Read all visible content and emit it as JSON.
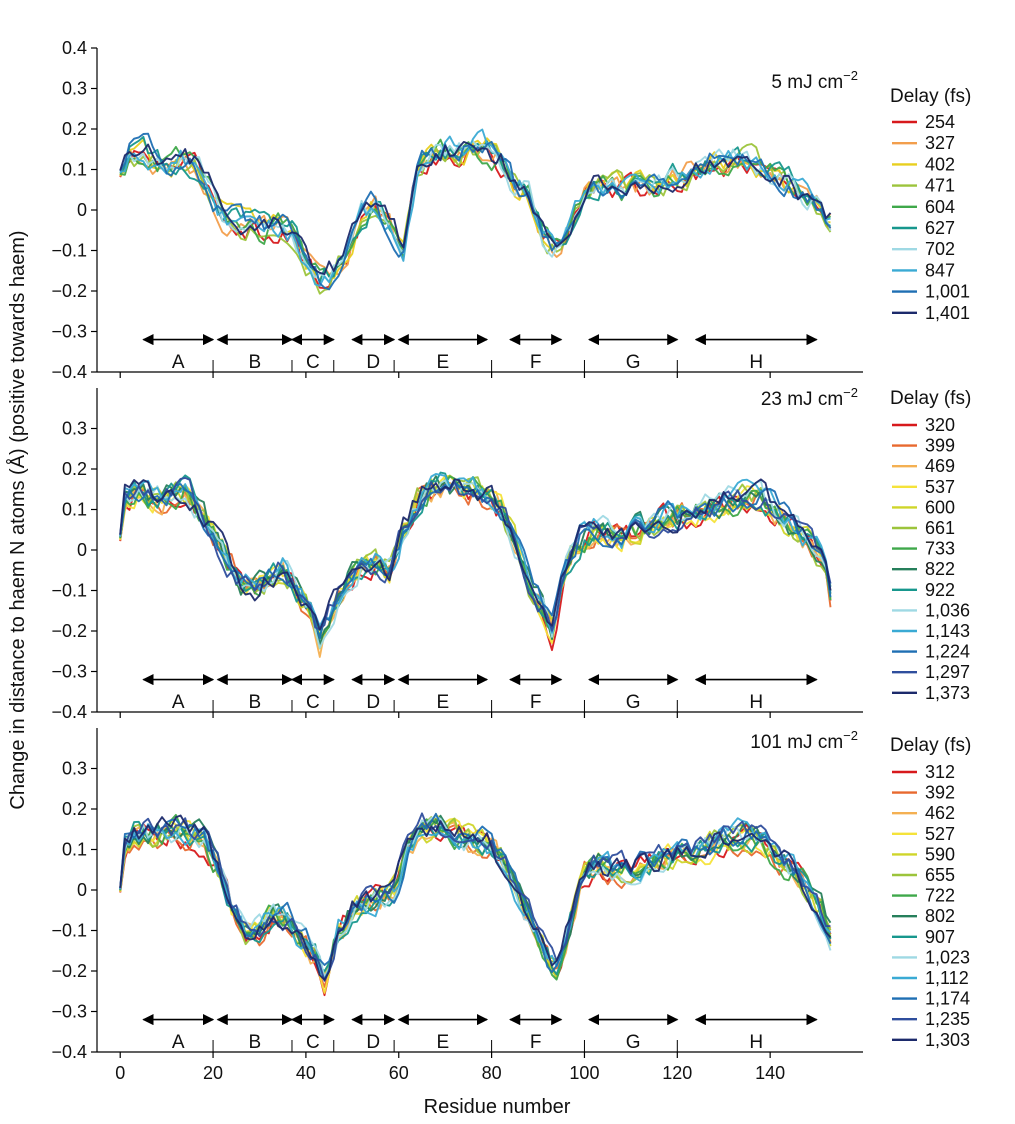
{
  "figure": {
    "ylabel": "Change in distance to haem N atoms (Å) (positive towards haem)",
    "xlabel": "Residue number",
    "legend_title": "Delay (fs)"
  },
  "chart_data": [
    {
      "type": "line",
      "condition": "5 mJ cm",
      "condition_sup": "−2",
      "xlim": [
        -5,
        160
      ],
      "ylim": [
        -0.4,
        0.4
      ],
      "xticks": [
        "0",
        "20",
        "40",
        "60",
        "80",
        "100",
        "120",
        "140"
      ],
      "yticks": [
        "−0.4",
        "−0.3",
        "−0.2",
        "−0.1",
        "0",
        "0.1",
        "0.2",
        "0.3",
        "0.4"
      ],
      "grid": false,
      "legend_placement": "right",
      "series": [
        {
          "name": "254",
          "color": "#d7191c"
        },
        {
          "name": "327",
          "color": "#f29e4c"
        },
        {
          "name": "402",
          "color": "#e8cf1f"
        },
        {
          "name": "471",
          "color": "#9cc43b"
        },
        {
          "name": "604",
          "color": "#3fa84a"
        },
        {
          "name": "627",
          "color": "#17978d"
        },
        {
          "name": "702",
          "color": "#9fd9e4"
        },
        {
          "name": "847",
          "color": "#3aaad4"
        },
        {
          "name": "1,001",
          "color": "#1f6fb3"
        },
        {
          "name": "1,401",
          "color": "#1c2a6b"
        }
      ],
      "profile_residues": [
        0,
        2,
        5,
        8,
        10,
        13,
        16,
        19,
        22,
        25,
        28,
        31,
        34,
        37,
        40,
        43,
        46,
        49,
        52,
        55,
        58,
        61,
        64,
        67,
        70,
        73,
        76,
        79,
        82,
        85,
        88,
        91,
        94,
        97,
        100,
        103,
        106,
        109,
        112,
        115,
        118,
        121,
        124,
        127,
        130,
        133,
        136,
        139,
        142,
        145,
        148,
        151,
        153
      ],
      "profile_mean": [
        0.08,
        0.13,
        0.14,
        0.12,
        0.11,
        0.13,
        0.11,
        0.06,
        -0.01,
        -0.03,
        -0.04,
        -0.05,
        -0.04,
        -0.06,
        -0.13,
        -0.17,
        -0.15,
        -0.1,
        -0.01,
        0.01,
        -0.04,
        -0.1,
        0.1,
        0.14,
        0.15,
        0.14,
        0.15,
        0.15,
        0.12,
        0.06,
        0.04,
        -0.06,
        -0.1,
        -0.04,
        0.05,
        0.06,
        0.06,
        0.05,
        0.06,
        0.06,
        0.07,
        0.09,
        0.1,
        0.12,
        0.12,
        0.13,
        0.12,
        0.1,
        0.08,
        0.06,
        0.03,
        0.0,
        -0.02
      ],
      "segments": [
        {
          "label": "A",
          "start": 5,
          "end": 20
        },
        {
          "label": "B",
          "start": 21,
          "end": 37
        },
        {
          "label": "C",
          "start": 37,
          "end": 46
        },
        {
          "label": "D",
          "start": 50,
          "end": 59
        },
        {
          "label": "E",
          "start": 60,
          "end": 79
        },
        {
          "label": "F",
          "start": 84,
          "end": 95
        },
        {
          "label": "G",
          "start": 101,
          "end": 120
        },
        {
          "label": "H",
          "start": 124,
          "end": 150
        }
      ]
    },
    {
      "type": "line",
      "condition": "23 mJ cm",
      "condition_sup": "−2",
      "xlim": [
        -5,
        160
      ],
      "ylim": [
        -0.4,
        0.4
      ],
      "xticks": [
        "0",
        "20",
        "40",
        "60",
        "80",
        "100",
        "120",
        "140"
      ],
      "yticks": [
        "−0.4",
        "−0.3",
        "−0.2",
        "−0.1",
        "0",
        "0.1",
        "0.2",
        "0.3"
      ],
      "grid": false,
      "legend_placement": "right",
      "series": [
        {
          "name": "320",
          "color": "#d7191c"
        },
        {
          "name": "399",
          "color": "#e8692f"
        },
        {
          "name": "469",
          "color": "#f4b052"
        },
        {
          "name": "537",
          "color": "#f5e33a"
        },
        {
          "name": "600",
          "color": "#cfd52a"
        },
        {
          "name": "661",
          "color": "#9cc43b"
        },
        {
          "name": "733",
          "color": "#3fa84a"
        },
        {
          "name": "822",
          "color": "#267f5b"
        },
        {
          "name": "922",
          "color": "#17978d"
        },
        {
          "name": "1,036",
          "color": "#9fd9e4"
        },
        {
          "name": "1,143",
          "color": "#3aaad4"
        },
        {
          "name": "1,224",
          "color": "#1f6fb3"
        },
        {
          "name": "1,297",
          "color": "#2f4e9d"
        },
        {
          "name": "1,373",
          "color": "#1c2a6b"
        }
      ],
      "profile_residues": [
        0,
        1,
        3,
        6,
        9,
        12,
        14,
        17,
        20,
        23,
        26,
        29,
        32,
        35,
        38,
        41,
        43,
        46,
        49,
        52,
        55,
        58,
        61,
        64,
        67,
        70,
        73,
        76,
        79,
        82,
        85,
        88,
        91,
        93,
        96,
        99,
        102,
        105,
        108,
        111,
        114,
        117,
        120,
        123,
        126,
        129,
        132,
        135,
        138,
        141,
        144,
        147,
        150,
        152,
        153
      ],
      "profile_mean": [
        0.05,
        0.14,
        0.15,
        0.13,
        0.13,
        0.14,
        0.15,
        0.1,
        0.04,
        -0.02,
        -0.08,
        -0.09,
        -0.07,
        -0.05,
        -0.1,
        -0.15,
        -0.22,
        -0.14,
        -0.07,
        -0.04,
        -0.03,
        -0.05,
        0.05,
        0.12,
        0.15,
        0.16,
        0.15,
        0.15,
        0.13,
        0.1,
        0.02,
        -0.08,
        -0.14,
        -0.2,
        -0.05,
        0.02,
        0.05,
        0.04,
        0.03,
        0.05,
        0.06,
        0.08,
        0.08,
        0.09,
        0.1,
        0.11,
        0.12,
        0.13,
        0.13,
        0.1,
        0.07,
        0.04,
        0.0,
        -0.06,
        -0.12
      ],
      "segments": [
        {
          "label": "A",
          "start": 5,
          "end": 20
        },
        {
          "label": "B",
          "start": 21,
          "end": 37
        },
        {
          "label": "C",
          "start": 37,
          "end": 46
        },
        {
          "label": "D",
          "start": 50,
          "end": 59
        },
        {
          "label": "E",
          "start": 60,
          "end": 79
        },
        {
          "label": "F",
          "start": 84,
          "end": 95
        },
        {
          "label": "G",
          "start": 101,
          "end": 120
        },
        {
          "label": "H",
          "start": 124,
          "end": 150
        }
      ]
    },
    {
      "type": "line",
      "condition": "101 mJ cm",
      "condition_sup": "−2",
      "xlim": [
        -5,
        160
      ],
      "ylim": [
        -0.4,
        0.4
      ],
      "xticks": [
        "0",
        "20",
        "40",
        "60",
        "80",
        "100",
        "120",
        "140"
      ],
      "yticks": [
        "−0.4",
        "−0.3",
        "−0.2",
        "−0.1",
        "0",
        "0.1",
        "0.2",
        "0.3"
      ],
      "grid": false,
      "legend_placement": "right",
      "series": [
        {
          "name": "312",
          "color": "#d7191c"
        },
        {
          "name": "392",
          "color": "#e8692f"
        },
        {
          "name": "462",
          "color": "#f4b052"
        },
        {
          "name": "527",
          "color": "#f5e33a"
        },
        {
          "name": "590",
          "color": "#cfd52a"
        },
        {
          "name": "655",
          "color": "#9cc43b"
        },
        {
          "name": "722",
          "color": "#3fa84a"
        },
        {
          "name": "802",
          "color": "#267f5b"
        },
        {
          "name": "907",
          "color": "#17978d"
        },
        {
          "name": "1,023",
          "color": "#9fd9e4"
        },
        {
          "name": "1,112",
          "color": "#3aaad4"
        },
        {
          "name": "1,174",
          "color": "#1f6fb3"
        },
        {
          "name": "1,235",
          "color": "#2f4e9d"
        },
        {
          "name": "1,303",
          "color": "#1c2a6b"
        }
      ],
      "profile_residues": [
        0,
        1,
        3,
        6,
        9,
        12,
        15,
        18,
        21,
        24,
        27,
        30,
        33,
        36,
        39,
        42,
        44,
        47,
        50,
        53,
        56,
        59,
        62,
        65,
        68,
        71,
        74,
        77,
        80,
        83,
        86,
        89,
        92,
        94,
        97,
        100,
        103,
        106,
        109,
        112,
        115,
        118,
        121,
        124,
        127,
        130,
        133,
        136,
        139,
        142,
        145,
        148,
        151,
        153
      ],
      "profile_mean": [
        0.0,
        0.11,
        0.14,
        0.14,
        0.14,
        0.15,
        0.14,
        0.13,
        0.06,
        -0.04,
        -0.1,
        -0.1,
        -0.06,
        -0.07,
        -0.12,
        -0.16,
        -0.22,
        -0.1,
        -0.05,
        -0.03,
        -0.02,
        0.0,
        0.1,
        0.15,
        0.16,
        0.15,
        0.13,
        0.12,
        0.11,
        0.06,
        -0.02,
        -0.08,
        -0.16,
        -0.2,
        -0.07,
        0.03,
        0.06,
        0.05,
        0.05,
        0.06,
        0.07,
        0.08,
        0.09,
        0.1,
        0.11,
        0.12,
        0.13,
        0.13,
        0.11,
        0.08,
        0.05,
        0.01,
        -0.05,
        -0.11
      ],
      "segments": [
        {
          "label": "A",
          "start": 5,
          "end": 20
        },
        {
          "label": "B",
          "start": 21,
          "end": 37
        },
        {
          "label": "C",
          "start": 37,
          "end": 46
        },
        {
          "label": "D",
          "start": 50,
          "end": 59
        },
        {
          "label": "E",
          "start": 60,
          "end": 79
        },
        {
          "label": "F",
          "start": 84,
          "end": 95
        },
        {
          "label": "G",
          "start": 101,
          "end": 120
        },
        {
          "label": "H",
          "start": 124,
          "end": 150
        }
      ]
    }
  ]
}
